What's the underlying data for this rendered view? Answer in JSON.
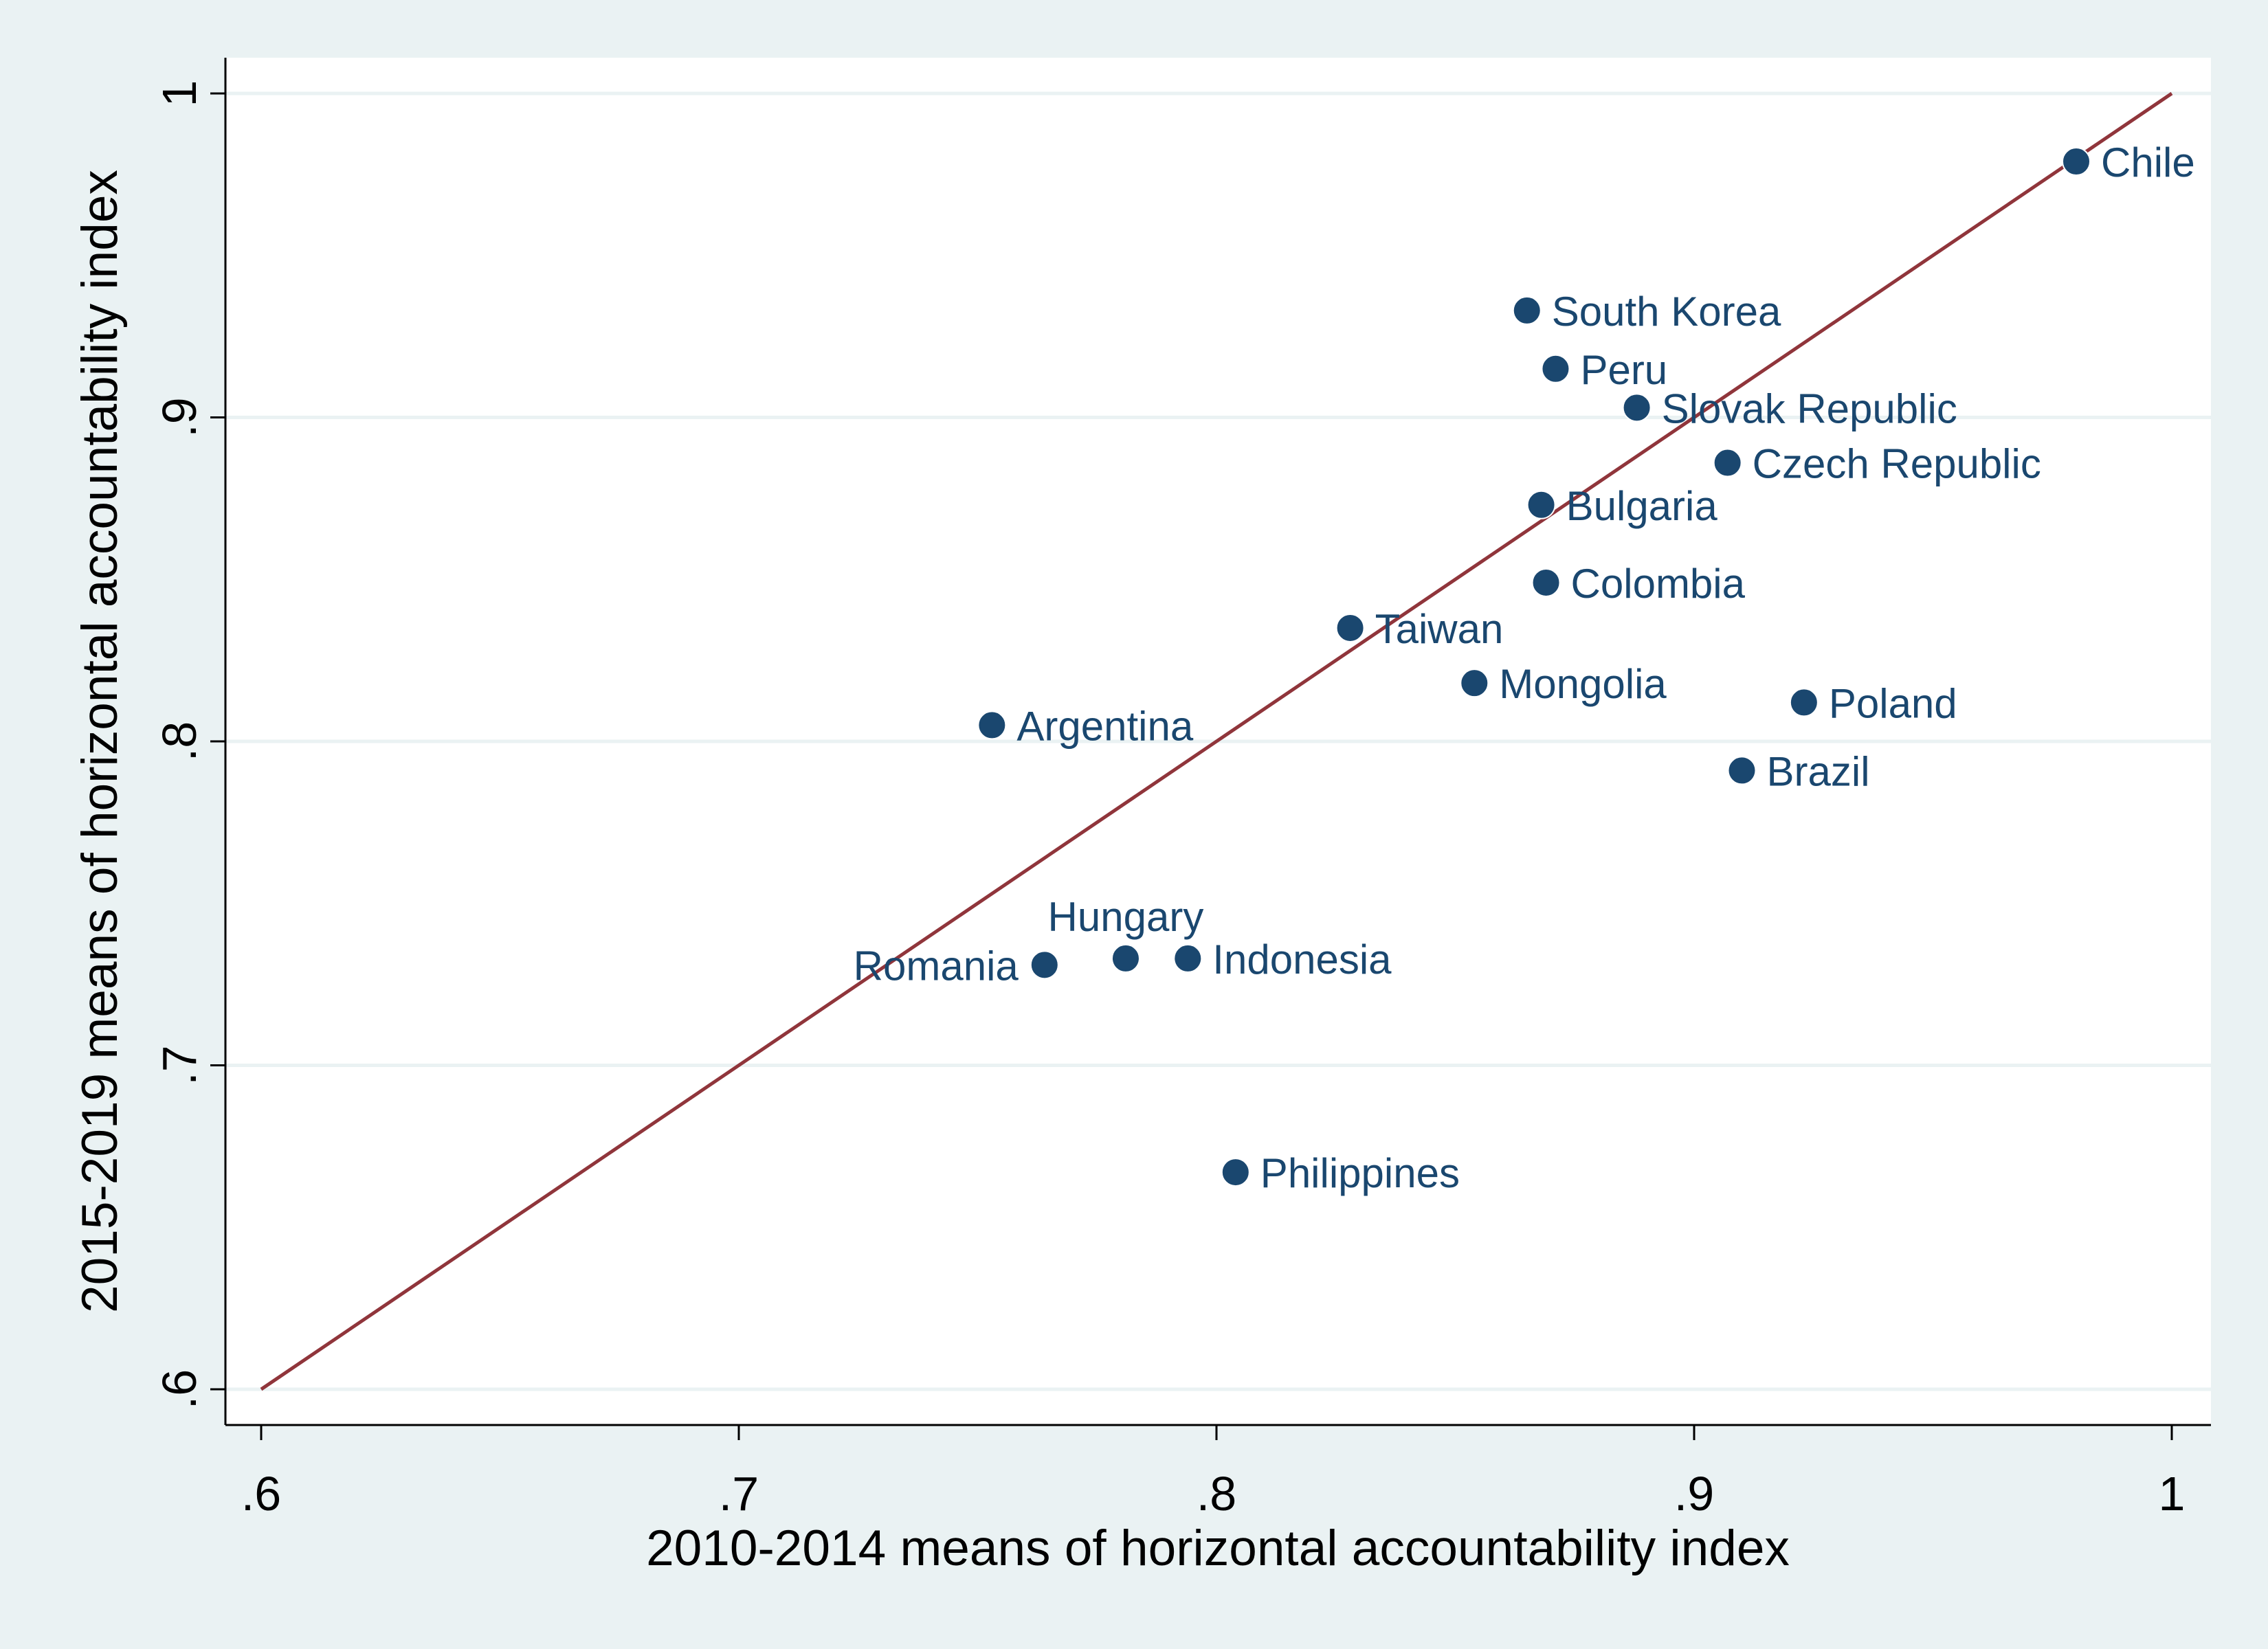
{
  "chart_data": {
    "type": "scatter",
    "title": "",
    "xlabel": "2010-2014 means of horizontal accountability index",
    "ylabel": "2015-2019 means of horizontal accountability index",
    "xlim": [
      0.6,
      1.0
    ],
    "ylim": [
      0.6,
      1.0
    ],
    "xticks": [
      0.6,
      0.7,
      0.8,
      0.9,
      1.0
    ],
    "yticks": [
      0.6,
      0.7,
      0.8,
      0.9,
      1.0
    ],
    "xtick_labels": [
      ".6",
      ".7",
      ".8",
      ".9",
      "1"
    ],
    "ytick_labels": [
      ".6",
      ".7",
      ".8",
      ".9",
      "1"
    ],
    "grid": "horizontal",
    "reference_line": {
      "from": [
        0.6,
        0.6
      ],
      "to": [
        1.0,
        1.0
      ],
      "color": "#90353b"
    },
    "marker_color": "#1a476f",
    "points": [
      {
        "label": "Chile",
        "x": 0.98,
        "y": 0.979,
        "pos": "right"
      },
      {
        "label": "South Korea",
        "x": 0.865,
        "y": 0.933,
        "pos": "right"
      },
      {
        "label": "Peru",
        "x": 0.871,
        "y": 0.915,
        "pos": "right"
      },
      {
        "label": "Slovak Republic",
        "x": 0.888,
        "y": 0.903,
        "pos": "right"
      },
      {
        "label": "Czech Republic",
        "x": 0.907,
        "y": 0.886,
        "pos": "right"
      },
      {
        "label": "Bulgaria",
        "x": 0.868,
        "y": 0.873,
        "pos": "right"
      },
      {
        "label": "Colombia",
        "x": 0.869,
        "y": 0.849,
        "pos": "right"
      },
      {
        "label": "Taiwan",
        "x": 0.828,
        "y": 0.835,
        "pos": "right"
      },
      {
        "label": "Mongolia",
        "x": 0.854,
        "y": 0.818,
        "pos": "right"
      },
      {
        "label": "Poland",
        "x": 0.923,
        "y": 0.812,
        "pos": "right"
      },
      {
        "label": "Argentina",
        "x": 0.753,
        "y": 0.805,
        "pos": "right"
      },
      {
        "label": "Brazil",
        "x": 0.91,
        "y": 0.791,
        "pos": "right"
      },
      {
        "label": "Hungary",
        "x": 0.781,
        "y": 0.733,
        "pos": "above"
      },
      {
        "label": "Indonesia",
        "x": 0.794,
        "y": 0.733,
        "pos": "right"
      },
      {
        "label": "Romania",
        "x": 0.764,
        "y": 0.731,
        "pos": "left"
      },
      {
        "label": "Philippines",
        "x": 0.804,
        "y": 0.667,
        "pos": "right"
      }
    ]
  }
}
